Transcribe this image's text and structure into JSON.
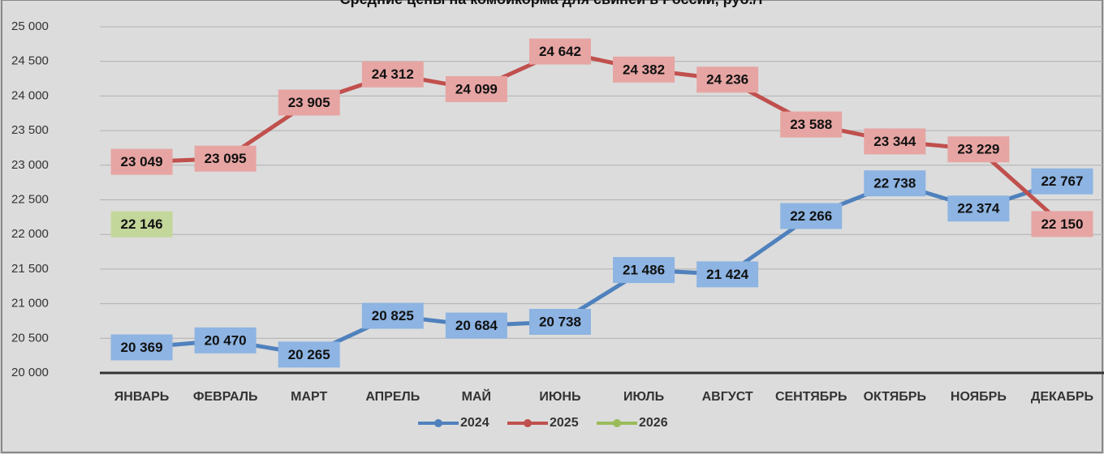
{
  "chart_data": {
    "type": "line",
    "title": "Средние цены на комбикорма для свиней в России, руб./т",
    "categories": [
      "ЯНВАРЬ",
      "ФЕВРАЛЬ",
      "МАРТ",
      "АПРЕЛЬ",
      "МАЙ",
      "ИЮНЬ",
      "ИЮЛЬ",
      "АВГУСТ",
      "СЕНТЯБРЬ",
      "ОКТЯБРЬ",
      "НОЯБРЬ",
      "ДЕКАБРЬ"
    ],
    "series": [
      {
        "name": "2024",
        "color": "#4f81bd",
        "label_color": "#8db4e2",
        "values": [
          20369,
          20470,
          20265,
          20825,
          20684,
          20738,
          21486,
          21424,
          22266,
          22738,
          22374,
          22767
        ],
        "value_labels": [
          "20 369",
          "20 470",
          "20 265",
          "20 825",
          "20 684",
          "20 738",
          "21 486",
          "21 424",
          "22 266",
          "22 738",
          "22 374",
          "22 767"
        ]
      },
      {
        "name": "2025",
        "color": "#c0504d",
        "label_color": "#e6a5a3",
        "values": [
          23049,
          23095,
          23905,
          24312,
          24099,
          24642,
          24382,
          24236,
          23588,
          23344,
          23229,
          22150
        ],
        "value_labels": [
          "23 049",
          "23 095",
          "23 905",
          "24 312",
          "24 099",
          "24 642",
          "24 382",
          "24 236",
          "23 588",
          "23 344",
          "23 229",
          "22 150"
        ]
      },
      {
        "name": "2026",
        "color": "#9bbb59",
        "label_color": "#c4d79b",
        "values": [
          22146,
          null,
          null,
          null,
          null,
          null,
          null,
          null,
          null,
          null,
          null,
          null
        ],
        "value_labels": [
          "22 146",
          null,
          null,
          null,
          null,
          null,
          null,
          null,
          null,
          null,
          null,
          null
        ]
      }
    ],
    "ylim": [
      20000,
      25000
    ],
    "yticks": [
      {
        "value": 20000,
        "label": "20 000"
      },
      {
        "value": 20500,
        "label": "20 500"
      },
      {
        "value": 21000,
        "label": "21 000"
      },
      {
        "value": 21500,
        "label": "21 500"
      },
      {
        "value": 22000,
        "label": "22 000"
      },
      {
        "value": 22500,
        "label": "22 500"
      },
      {
        "value": 23000,
        "label": "23 000"
      },
      {
        "value": 23500,
        "label": "23 500"
      },
      {
        "value": 24000,
        "label": "24 000"
      },
      {
        "value": 24500,
        "label": "24 500"
      },
      {
        "value": 25000,
        "label": "25 000"
      }
    ],
    "grid": true,
    "legend": "bottom"
  }
}
